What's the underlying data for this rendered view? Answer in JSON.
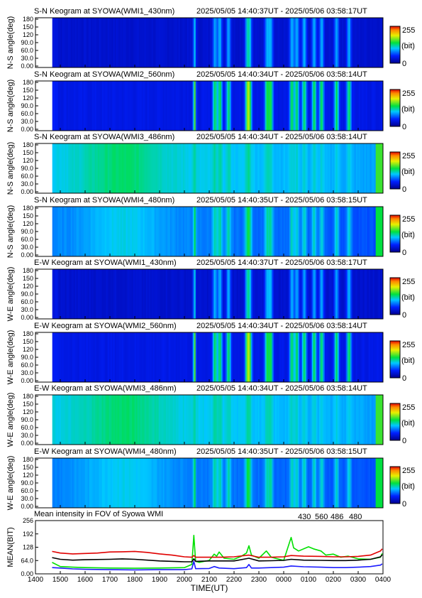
{
  "chart_data": {
    "type": "heatmap",
    "colorbar": {
      "max_label": "255",
      "unit_label": "(bit)",
      "min_label": "0"
    },
    "time_axis": {
      "ticks": [
        "1400",
        "1500",
        "1600",
        "1700",
        "1800",
        "1900",
        "2000",
        "2100",
        "2200",
        "2300",
        "0000",
        "0100",
        "0200",
        "0300",
        "0400"
      ],
      "hours": [
        14,
        15,
        16,
        17,
        18,
        19,
        20,
        21,
        22,
        23,
        24,
        25,
        26,
        27,
        28
      ],
      "xlim_hours": [
        14,
        28
      ],
      "xlabel": "TIME(UT)"
    },
    "angle_ticks": [
      "0.00",
      "30.0",
      "60.0",
      "90.0",
      "120",
      "150",
      "180"
    ],
    "panels": [
      {
        "title": "S-N Keogram at SYOWA(WMI1_430nm)",
        "range": "2025/05/05 14:40:37UT - 2025/05/06 03:58:17UT",
        "ylabel": "N-S angle(deg)",
        "palette": "dark"
      },
      {
        "title": "S-N Keogram at SYOWA(WMI2_560nm)",
        "range": "2025/05/05 14:40:34UT - 2025/05/06 03:58:14UT",
        "ylabel": "N-S angle(deg)",
        "palette": "bright"
      },
      {
        "title": "S-N Keogram at SYOWA(WMI3_486nm)",
        "range": "2025/05/05 14:40:34UT - 2025/05/06 03:58:14UT",
        "ylabel": "N-S angle(deg)",
        "palette": "green"
      },
      {
        "title": "S-N Keogram at SYOWA(WMI4_480nm)",
        "range": "2025/05/05 14:40:35UT - 2025/05/06 03:58:15UT",
        "ylabel": "N-S angle(deg)",
        "palette": "teal"
      },
      {
        "title": "E-W Keogram at SYOWA(WMI1_430nm)",
        "range": "2025/05/05 14:40:37UT - 2025/05/06 03:58:17UT",
        "ylabel": "W-E angle(deg)",
        "palette": "dark"
      },
      {
        "title": "E-W Keogram at SYOWA(WMI2_560nm)",
        "range": "2025/05/05 14:40:34UT - 2025/05/06 03:58:14UT",
        "ylabel": "W-E angle(deg)",
        "palette": "bright"
      },
      {
        "title": "E-W Keogram at SYOWA(WMI3_486nm)",
        "range": "2025/05/05 14:40:34UT - 2025/05/06 03:58:14UT",
        "ylabel": "W-E angle(deg)",
        "palette": "green"
      },
      {
        "title": "E-W Keogram at SYOWA(WMI4_480nm)",
        "range": "2025/05/05 14:40:35UT - 2025/05/06 03:58:15UT",
        "ylabel": "W-E angle(deg)",
        "palette": "teal"
      }
    ],
    "palettes": {
      "dark": {
        "base": 0.1,
        "peak": 0.42,
        "edge": 0.2
      },
      "bright": {
        "base": 0.14,
        "peak": 0.62,
        "edge": 0.24
      },
      "green": {
        "base": 0.4,
        "peak": 0.48,
        "edge": 0.55
      },
      "teal": {
        "base": 0.3,
        "peak": 0.52,
        "edge": 0.5
      }
    },
    "bright_bands": [
      20.38,
      21.2,
      21.4,
      21.75,
      22.5,
      22.6,
      23.3,
      23.45,
      24.3,
      24.5,
      24.8,
      25.2,
      25.5,
      26.1,
      26.6
    ],
    "mean_plot": {
      "title": "Mean intensity in FOV of Syowa WMI",
      "ylabel": "MEAN(BIT)",
      "yticks": [
        "0.00",
        "64.0",
        "128",
        "192",
        "256"
      ],
      "ylim": [
        0,
        256
      ],
      "legend": [
        {
          "label": "430",
          "color": "#1a1aff"
        },
        {
          "label": "560",
          "color": "#00e000"
        },
        {
          "label": "486",
          "color": "#e00000"
        },
        {
          "label": "480",
          "color": "#000000"
        }
      ],
      "series": [
        {
          "name": "430",
          "color": "#1a1aff",
          "x": [
            14.67,
            15.0,
            15.5,
            16.0,
            17.0,
            18.0,
            19.0,
            20.0,
            20.3,
            20.38,
            20.45,
            21.0,
            21.2,
            21.4,
            22.0,
            22.5,
            22.6,
            22.7,
            23.0,
            23.5,
            24.0,
            24.3,
            24.8,
            25.5,
            26.0,
            26.5,
            27.0,
            27.5,
            27.9,
            27.97
          ],
          "y": [
            30,
            28,
            24,
            22,
            20,
            19,
            20,
            20,
            24,
            60,
            25,
            26,
            35,
            28,
            25,
            30,
            45,
            28,
            28,
            30,
            32,
            38,
            34,
            32,
            30,
            30,
            32,
            35,
            42,
            48
          ]
        },
        {
          "name": "560",
          "color": "#00e000",
          "x": [
            14.67,
            15.0,
            15.5,
            16.0,
            17.0,
            18.0,
            19.0,
            20.0,
            20.3,
            20.38,
            20.45,
            20.6,
            21.0,
            21.2,
            21.3,
            21.4,
            21.6,
            22.0,
            22.3,
            22.5,
            22.6,
            22.7,
            23.0,
            23.3,
            23.5,
            24.0,
            24.3,
            24.4,
            24.6,
            25.0,
            25.2,
            25.5,
            25.7,
            26.0,
            26.3,
            26.6,
            27.0,
            27.5,
            27.9,
            27.97
          ],
          "y": [
            55,
            35,
            32,
            30,
            28,
            27,
            28,
            30,
            45,
            185,
            60,
            55,
            65,
            95,
            85,
            105,
            75,
            70,
            85,
            100,
            135,
            90,
            75,
            110,
            80,
            65,
            175,
            125,
            110,
            130,
            120,
            110,
            90,
            95,
            80,
            85,
            72,
            70,
            80,
            98
          ]
        },
        {
          "name": "486",
          "color": "#e00000",
          "x": [
            14.67,
            15.0,
            15.5,
            16.0,
            16.5,
            17.0,
            17.5,
            18.0,
            18.5,
            19.0,
            19.5,
            20.0,
            20.3,
            20.38,
            20.45,
            21.0,
            21.5,
            22.0,
            22.6,
            23.0,
            23.5,
            24.0,
            24.3,
            24.8,
            25.5,
            26.0,
            26.5,
            27.0,
            27.5,
            27.9,
            27.97
          ],
          "y": [
            108,
            100,
            96,
            98,
            100,
            105,
            106,
            108,
            103,
            96,
            90,
            82,
            80,
            88,
            80,
            80,
            80,
            82,
            90,
            80,
            80,
            82,
            88,
            85,
            84,
            82,
            82,
            84,
            90,
            110,
            120
          ]
        },
        {
          "name": "480",
          "color": "#000000",
          "x": [
            14.67,
            15.0,
            15.5,
            16.0,
            17.0,
            17.5,
            18.0,
            19.0,
            20.0,
            20.3,
            20.38,
            20.45,
            21.0,
            21.5,
            22.0,
            22.6,
            23.0,
            23.5,
            24.0,
            24.3,
            24.8,
            25.5,
            26.0,
            26.5,
            27.0,
            27.5,
            27.9,
            27.97
          ],
          "y": [
            78,
            70,
            66,
            68,
            70,
            72,
            70,
            62,
            58,
            58,
            72,
            60,
            62,
            62,
            62,
            75,
            62,
            63,
            65,
            70,
            66,
            65,
            64,
            64,
            66,
            70,
            82,
            92
          ]
        }
      ]
    }
  }
}
